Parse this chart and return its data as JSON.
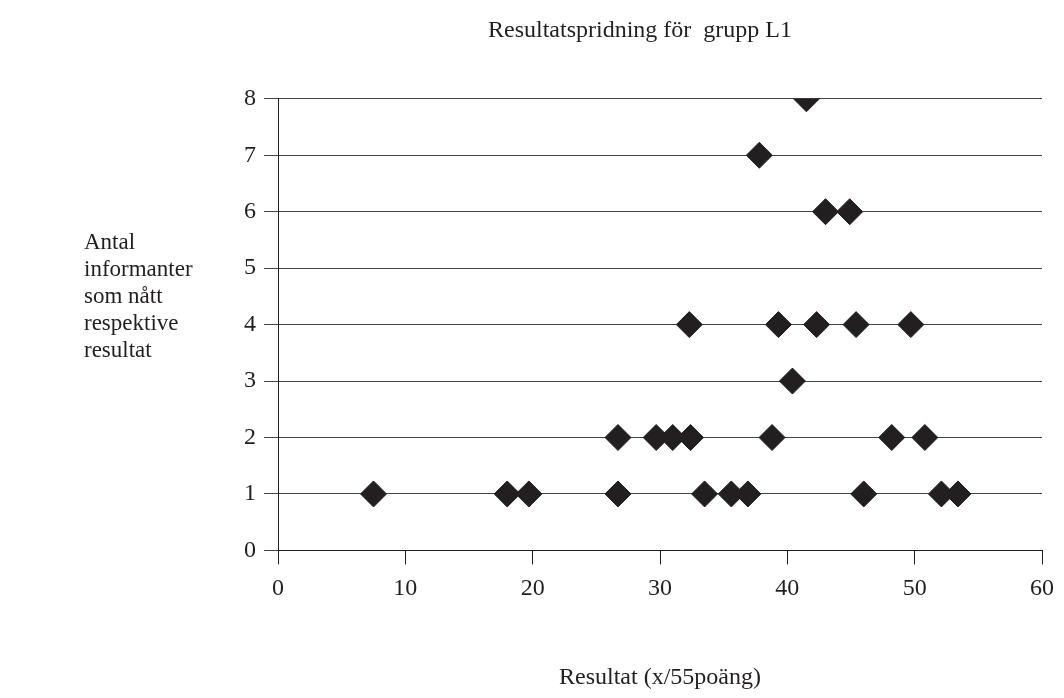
{
  "chart_data": {
    "type": "scatter",
    "title": "Resultatspridning för  grupp L1",
    "xlabel": "Resultat (x/55poäng)",
    "ylabel": "Antal informanter som nått respektive resultat",
    "series": [
      {
        "color": "#231f20",
        "x": [
          7.5,
          18,
          19.7,
          26.7,
          33.5,
          35.6,
          36.9,
          46,
          52.1,
          53.4,
          26.7,
          29.7,
          31,
          32.4,
          38.8,
          48.2,
          50.8,
          40.4,
          32.3,
          39.3,
          42.3,
          45.4,
          49.7,
          43,
          44.9,
          37.8,
          41.5
        ],
        "values": [
          1,
          1,
          1,
          1,
          1,
          1,
          1,
          1,
          1,
          1,
          2,
          2,
          2,
          2,
          2,
          2,
          2,
          3,
          4,
          4,
          4,
          4,
          4,
          6,
          6,
          7,
          8
        ]
      }
    ],
    "xlim": [
      0,
      60
    ],
    "xticks": [
      0,
      10,
      20,
      30,
      40,
      50,
      60
    ],
    "ylim": [
      0,
      8
    ],
    "yticks": [
      0,
      1,
      2,
      3,
      4,
      5,
      6,
      7,
      8
    ],
    "grid": "y",
    "legend": false,
    "marker": "diamond"
  }
}
